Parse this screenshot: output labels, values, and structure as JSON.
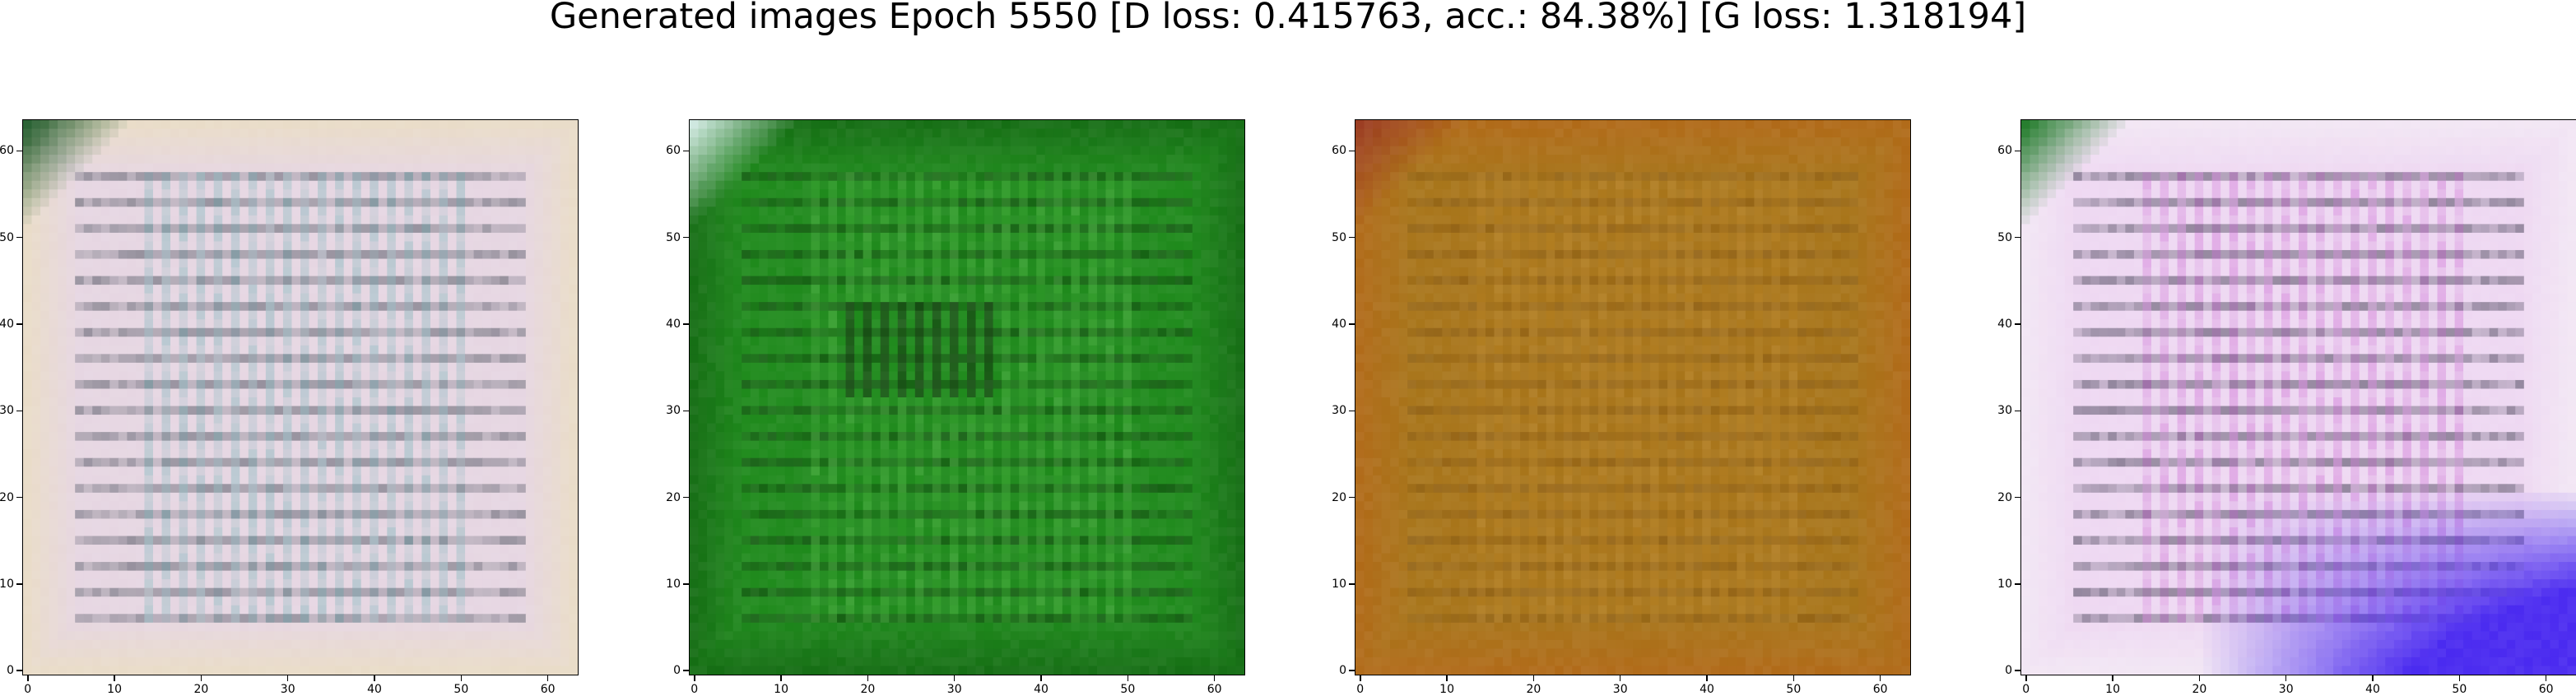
{
  "figure": {
    "title": "Generated images Epoch 5550 [D loss: 0.415763, acc.: 84.38%] [G loss: 1.318194]"
  },
  "chart_data": [
    {
      "type": "heatmap",
      "description_kind": "generated-image",
      "xlim": [
        -0.5,
        63.5
      ],
      "ylim": [
        63.5,
        -0.5
      ],
      "x_ticks": [
        0,
        10,
        20,
        30,
        40,
        50,
        60
      ],
      "y_ticks": [
        0,
        10,
        20,
        30,
        40,
        50,
        60
      ],
      "x_tick_labels": [
        "0",
        "10",
        "20",
        "30",
        "40",
        "50",
        "60"
      ],
      "y_tick_labels": [
        "0",
        "10",
        "20",
        "30",
        "40",
        "50",
        "60"
      ],
      "grid": false,
      "colors": {
        "base": "#e6d6e2",
        "frame": "#e9dcc8",
        "stripe_dark": "#2a3340",
        "stripe_accent": "#4fa6a8",
        "corner": "#1f5a2a"
      }
    },
    {
      "type": "heatmap",
      "description_kind": "generated-image",
      "xlim": [
        -0.5,
        63.5
      ],
      "ylim": [
        63.5,
        -0.5
      ],
      "x_ticks": [
        0,
        10,
        20,
        30,
        40,
        50,
        60
      ],
      "y_ticks": [
        0,
        10,
        20,
        30,
        40,
        50,
        60
      ],
      "x_tick_labels": [
        "0",
        "10",
        "20",
        "30",
        "40",
        "50",
        "60"
      ],
      "y_tick_labels": [
        "0",
        "10",
        "20",
        "30",
        "40",
        "50",
        "60"
      ],
      "grid": false,
      "colors": {
        "base": "#1f8a1c",
        "frame": "#156e14",
        "stripe_dark": "#0a2a08",
        "stripe_accent": "#66cc55",
        "corner": "#cfe8e0"
      }
    },
    {
      "type": "heatmap",
      "description_kind": "generated-image",
      "xlim": [
        -0.5,
        63.5
      ],
      "ylim": [
        63.5,
        -0.5
      ],
      "x_ticks": [
        0,
        10,
        20,
        30,
        40,
        50,
        60
      ],
      "y_ticks": [
        0,
        10,
        20,
        30,
        40,
        50,
        60
      ],
      "x_tick_labels": [
        "0",
        "10",
        "20",
        "30",
        "40",
        "50",
        "60"
      ],
      "y_tick_labels": [
        "0",
        "10",
        "20",
        "30",
        "40",
        "50",
        "60"
      ],
      "grid": false,
      "colors": {
        "base": "#a8751a",
        "frame": "#b06a18",
        "stripe_dark": "#7a4e10",
        "stripe_accent": "#c89030",
        "corner": "#9a3a1e"
      }
    },
    {
      "type": "heatmap",
      "description_kind": "generated-image",
      "xlim": [
        -0.5,
        63.5
      ],
      "ylim": [
        63.5,
        -0.5
      ],
      "x_ticks": [
        0,
        10,
        20,
        30,
        40,
        50,
        60
      ],
      "y_ticks": [
        0,
        10,
        20,
        30,
        40,
        50,
        60
      ],
      "x_tick_labels": [
        "0",
        "10",
        "20",
        "30",
        "40",
        "50",
        "60"
      ],
      "y_tick_labels": [
        "0",
        "10",
        "20",
        "30",
        "40",
        "50",
        "60"
      ],
      "grid": false,
      "colors": {
        "base": "#eed8f2",
        "frame": "#f2e6f4",
        "stripe_dark": "#141428",
        "stripe_accent": "#c040c8",
        "corner": "#1f7a28",
        "accent_bottom": "#4a2af0"
      }
    }
  ]
}
